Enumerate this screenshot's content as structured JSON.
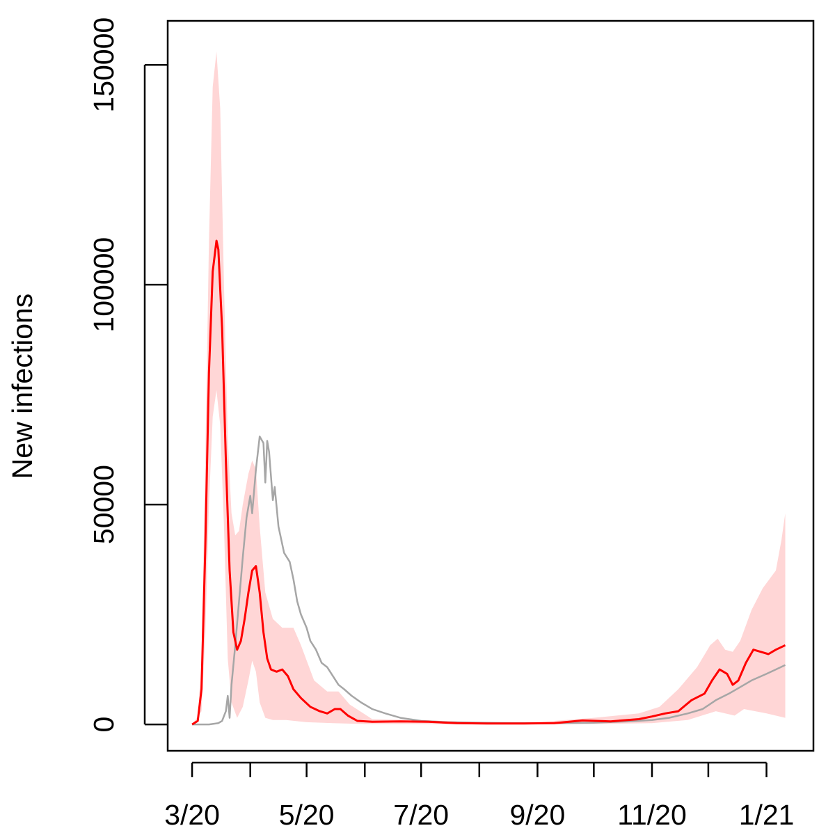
{
  "chart_data": {
    "type": "line",
    "ylabel": "New infections",
    "xlabel": "",
    "y_ticks": [
      0,
      50000,
      100000,
      150000
    ],
    "y_tick_labels": [
      "0",
      "50000",
      "100000",
      "150000"
    ],
    "x_tick_dates": [
      "2020-03-01",
      "2020-04-01",
      "2020-05-01",
      "2020-06-01",
      "2020-07-01",
      "2020-08-01",
      "2020-09-01",
      "2020-10-01",
      "2020-11-01",
      "2020-12-01",
      "2021-01-01"
    ],
    "x_labels": [
      {
        "date": "2020-03-01",
        "label": "3/20"
      },
      {
        "date": "2020-05-01",
        "label": "5/20"
      },
      {
        "date": "2020-07-01",
        "label": "7/20"
      },
      {
        "date": "2020-09-01",
        "label": "9/20"
      },
      {
        "date": "2020-11-01",
        "label": "11/20"
      },
      {
        "date": "2021-01-01",
        "label": "1/21"
      }
    ],
    "xlim": [
      "2020-02-17",
      "2021-01-26"
    ],
    "ylim": [
      -6000,
      160000
    ],
    "grid": false,
    "legend": "none",
    "colors": {
      "model": "#ff0000",
      "band": "#ffd6d6",
      "observed": "#a6a6a6"
    },
    "series": [
      {
        "role": "model",
        "color": "#ff0000",
        "points": [
          [
            "2020-03-01",
            0
          ],
          [
            "2020-03-04",
            800
          ],
          [
            "2020-03-06",
            8000
          ],
          [
            "2020-03-08",
            40000
          ],
          [
            "2020-03-10",
            80000
          ],
          [
            "2020-03-12",
            103000
          ],
          [
            "2020-03-14",
            110000
          ],
          [
            "2020-03-15",
            108000
          ],
          [
            "2020-03-17",
            90000
          ],
          [
            "2020-03-19",
            60000
          ],
          [
            "2020-03-21",
            35000
          ],
          [
            "2020-03-23",
            21000
          ],
          [
            "2020-03-25",
            17000
          ],
          [
            "2020-03-27",
            19000
          ],
          [
            "2020-03-29",
            24000
          ],
          [
            "2020-03-31",
            30000
          ],
          [
            "2020-04-02",
            35000
          ],
          [
            "2020-04-04",
            36000
          ],
          [
            "2020-04-06",
            30000
          ],
          [
            "2020-04-08",
            21000
          ],
          [
            "2020-04-10",
            15000
          ],
          [
            "2020-04-12",
            12500
          ],
          [
            "2020-04-15",
            12000
          ],
          [
            "2020-04-18",
            12500
          ],
          [
            "2020-04-21",
            11000
          ],
          [
            "2020-04-24",
            8000
          ],
          [
            "2020-04-28",
            6000
          ],
          [
            "2020-05-03",
            4000
          ],
          [
            "2020-05-08",
            3000
          ],
          [
            "2020-05-12",
            2500
          ],
          [
            "2020-05-16",
            3500
          ],
          [
            "2020-05-19",
            3500
          ],
          [
            "2020-05-23",
            2000
          ],
          [
            "2020-05-28",
            800
          ],
          [
            "2020-06-05",
            600
          ],
          [
            "2020-06-20",
            700
          ],
          [
            "2020-07-05",
            600
          ],
          [
            "2020-07-20",
            300
          ],
          [
            "2020-08-05",
            200
          ],
          [
            "2020-08-25",
            200
          ],
          [
            "2020-09-10",
            300
          ],
          [
            "2020-09-25",
            900
          ],
          [
            "2020-10-10",
            700
          ],
          [
            "2020-10-25",
            1200
          ],
          [
            "2020-11-01",
            1800
          ],
          [
            "2020-11-08",
            2500
          ],
          [
            "2020-11-15",
            3000
          ],
          [
            "2020-11-22",
            5500
          ],
          [
            "2020-11-29",
            7000
          ],
          [
            "2020-12-03",
            10000
          ],
          [
            "2020-12-07",
            12500
          ],
          [
            "2020-12-11",
            11500
          ],
          [
            "2020-12-14",
            9000
          ],
          [
            "2020-12-17",
            10000
          ],
          [
            "2020-12-21",
            14000
          ],
          [
            "2020-12-25",
            17000
          ],
          [
            "2020-12-29",
            16500
          ],
          [
            "2021-01-02",
            16000
          ],
          [
            "2021-01-06",
            17000
          ],
          [
            "2021-01-11",
            18000
          ]
        ]
      },
      {
        "role": "observed",
        "color": "#a6a6a6",
        "points": [
          [
            "2020-03-01",
            0
          ],
          [
            "2020-03-10",
            0
          ],
          [
            "2020-03-15",
            300
          ],
          [
            "2020-03-17",
            800
          ],
          [
            "2020-03-19",
            3000
          ],
          [
            "2020-03-20",
            6500
          ],
          [
            "2020-03-21",
            1500
          ],
          [
            "2020-03-22",
            9000
          ],
          [
            "2020-03-24",
            18000
          ],
          [
            "2020-03-26",
            28000
          ],
          [
            "2020-03-28",
            38000
          ],
          [
            "2020-03-30",
            47000
          ],
          [
            "2020-04-01",
            52000
          ],
          [
            "2020-04-02",
            48000
          ],
          [
            "2020-04-04",
            58000
          ],
          [
            "2020-04-06",
            65500
          ],
          [
            "2020-04-08",
            64000
          ],
          [
            "2020-04-09",
            55000
          ],
          [
            "2020-04-10",
            64500
          ],
          [
            "2020-04-11",
            62000
          ],
          [
            "2020-04-13",
            51000
          ],
          [
            "2020-04-14",
            54000
          ],
          [
            "2020-04-16",
            45000
          ],
          [
            "2020-04-19",
            39000
          ],
          [
            "2020-04-22",
            37000
          ],
          [
            "2020-04-24",
            33000
          ],
          [
            "2020-04-26",
            28000
          ],
          [
            "2020-04-28",
            25000
          ],
          [
            "2020-05-01",
            22000
          ],
          [
            "2020-05-03",
            19000
          ],
          [
            "2020-05-06",
            17000
          ],
          [
            "2020-05-09",
            14000
          ],
          [
            "2020-05-12",
            13000
          ],
          [
            "2020-05-15",
            11000
          ],
          [
            "2020-05-18",
            9000
          ],
          [
            "2020-05-21",
            8000
          ],
          [
            "2020-05-25",
            6500
          ],
          [
            "2020-05-30",
            5000
          ],
          [
            "2020-06-05",
            3500
          ],
          [
            "2020-06-12",
            2500
          ],
          [
            "2020-06-20",
            1500
          ],
          [
            "2020-07-01",
            800
          ],
          [
            "2020-07-15",
            500
          ],
          [
            "2020-08-01",
            400
          ],
          [
            "2020-08-20",
            300
          ],
          [
            "2020-09-10",
            300
          ],
          [
            "2020-10-01",
            400
          ],
          [
            "2020-10-20",
            700
          ],
          [
            "2020-11-01",
            1000
          ],
          [
            "2020-11-10",
            1500
          ],
          [
            "2020-11-20",
            2500
          ],
          [
            "2020-11-28",
            3500
          ],
          [
            "2020-12-05",
            5500
          ],
          [
            "2020-12-12",
            7000
          ],
          [
            "2020-12-18",
            8500
          ],
          [
            "2020-12-24",
            10000
          ],
          [
            "2021-01-01",
            11500
          ],
          [
            "2021-01-06",
            12500
          ],
          [
            "2021-01-11",
            13500
          ]
        ]
      }
    ],
    "band": {
      "role": "uncertainty",
      "color": "#ffd6d6",
      "upper": [
        [
          "2020-03-01",
          0
        ],
        [
          "2020-03-04",
          1200
        ],
        [
          "2020-03-06",
          15000
        ],
        [
          "2020-03-08",
          60000
        ],
        [
          "2020-03-10",
          110000
        ],
        [
          "2020-03-12",
          145000
        ],
        [
          "2020-03-14",
          153000
        ],
        [
          "2020-03-16",
          140000
        ],
        [
          "2020-03-18",
          100000
        ],
        [
          "2020-03-20",
          65000
        ],
        [
          "2020-03-22",
          48000
        ],
        [
          "2020-03-24",
          43000
        ],
        [
          "2020-03-26",
          44000
        ],
        [
          "2020-03-28",
          50000
        ],
        [
          "2020-03-31",
          57000
        ],
        [
          "2020-04-02",
          60000
        ],
        [
          "2020-04-04",
          58000
        ],
        [
          "2020-04-06",
          45000
        ],
        [
          "2020-04-09",
          30000
        ],
        [
          "2020-04-13",
          24000
        ],
        [
          "2020-04-18",
          22000
        ],
        [
          "2020-04-24",
          22000
        ],
        [
          "2020-04-28",
          18000
        ],
        [
          "2020-05-05",
          10000
        ],
        [
          "2020-05-12",
          7500
        ],
        [
          "2020-05-18",
          7500
        ],
        [
          "2020-05-24",
          4500
        ],
        [
          "2020-06-05",
          1200
        ],
        [
          "2020-07-01",
          1000
        ],
        [
          "2020-08-01",
          500
        ],
        [
          "2020-09-01",
          500
        ],
        [
          "2020-10-01",
          1500
        ],
        [
          "2020-10-25",
          2500
        ],
        [
          "2020-11-05",
          4000
        ],
        [
          "2020-11-15",
          8000
        ],
        [
          "2020-11-25",
          13000
        ],
        [
          "2020-12-02",
          18000
        ],
        [
          "2020-12-06",
          19500
        ],
        [
          "2020-12-10",
          17000
        ],
        [
          "2020-12-14",
          16500
        ],
        [
          "2020-12-18",
          19000
        ],
        [
          "2020-12-24",
          26000
        ],
        [
          "2020-12-30",
          31000
        ],
        [
          "2021-01-06",
          35000
        ],
        [
          "2021-01-09",
          42000
        ],
        [
          "2021-01-11",
          48000
        ]
      ],
      "lower": [
        [
          "2020-03-01",
          0
        ],
        [
          "2020-03-06",
          3000
        ],
        [
          "2020-03-08",
          20000
        ],
        [
          "2020-03-10",
          50000
        ],
        [
          "2020-03-12",
          70000
        ],
        [
          "2020-03-14",
          76000
        ],
        [
          "2020-03-16",
          68000
        ],
        [
          "2020-03-18",
          45000
        ],
        [
          "2020-03-20",
          15000
        ],
        [
          "2020-03-22",
          5000
        ],
        [
          "2020-03-25",
          1500
        ],
        [
          "2020-03-28",
          4000
        ],
        [
          "2020-03-31",
          10000
        ],
        [
          "2020-04-02",
          14500
        ],
        [
          "2020-04-04",
          12000
        ],
        [
          "2020-04-06",
          5000
        ],
        [
          "2020-04-09",
          1500
        ],
        [
          "2020-04-13",
          1000
        ],
        [
          "2020-04-20",
          1000
        ],
        [
          "2020-05-01",
          500
        ],
        [
          "2020-05-15",
          300
        ],
        [
          "2020-06-01",
          100
        ],
        [
          "2020-07-01",
          100
        ],
        [
          "2020-08-01",
          0
        ],
        [
          "2020-09-01",
          0
        ],
        [
          "2020-10-01",
          100
        ],
        [
          "2020-11-01",
          300
        ],
        [
          "2020-11-20",
          1000
        ],
        [
          "2020-12-05",
          3000
        ],
        [
          "2020-12-15",
          2000
        ],
        [
          "2020-12-20",
          3500
        ],
        [
          "2021-01-01",
          2500
        ],
        [
          "2021-01-11",
          1500
        ]
      ]
    }
  }
}
